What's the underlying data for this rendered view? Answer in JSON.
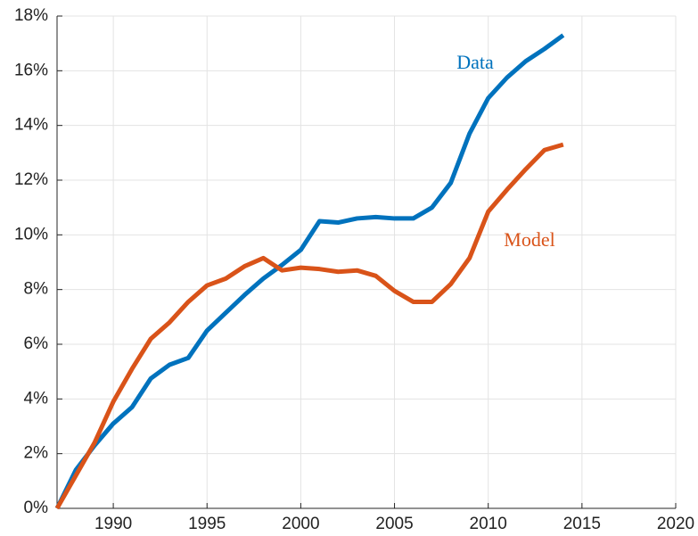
{
  "chart_data": {
    "type": "line",
    "x": [
      1987,
      1988,
      1989,
      1990,
      1991,
      1992,
      1993,
      1994,
      1995,
      1996,
      1997,
      1998,
      1999,
      2000,
      2001,
      2002,
      2003,
      2004,
      2005,
      2006,
      2007,
      2008,
      2009,
      2010,
      2011,
      2012,
      2013,
      2014
    ],
    "series": [
      {
        "name": "Data",
        "color": "#0072bd",
        "values": [
          0,
          1.4,
          2.3,
          3.1,
          3.7,
          4.75,
          5.25,
          5.5,
          6.5,
          7.15,
          7.8,
          8.4,
          8.9,
          9.45,
          10.5,
          10.45,
          10.6,
          10.65,
          10.6,
          10.6,
          11.0,
          11.9,
          13.7,
          15.0,
          15.75,
          16.35,
          16.8,
          17.3
        ]
      },
      {
        "name": "Model",
        "color": "#d95319",
        "values": [
          0,
          1.2,
          2.4,
          3.9,
          5.1,
          6.2,
          6.8,
          7.55,
          8.15,
          8.4,
          8.85,
          9.15,
          8.7,
          8.8,
          8.75,
          8.65,
          8.7,
          8.5,
          7.95,
          7.55,
          7.55,
          8.2,
          9.15,
          10.85,
          11.65,
          12.4,
          13.1,
          13.3
        ]
      }
    ],
    "xlim": [
      1987,
      2020
    ],
    "xticks": [
      1990,
      1995,
      2000,
      2005,
      2010,
      2015,
      2020
    ],
    "ylim": [
      0,
      18
    ],
    "yticks": [
      {
        "value": 0,
        "label": "0%"
      },
      {
        "value": 2,
        "label": "2%"
      },
      {
        "value": 4,
        "label": "4%"
      },
      {
        "value": 6,
        "label": "6%"
      },
      {
        "value": 8,
        "label": "8%"
      },
      {
        "value": 10,
        "label": "10%"
      },
      {
        "value": 12,
        "label": "12%"
      },
      {
        "value": 14,
        "label": "14%"
      },
      {
        "value": 16,
        "label": "16%"
      },
      {
        "value": 18,
        "label": "18%"
      }
    ],
    "grid": true
  }
}
